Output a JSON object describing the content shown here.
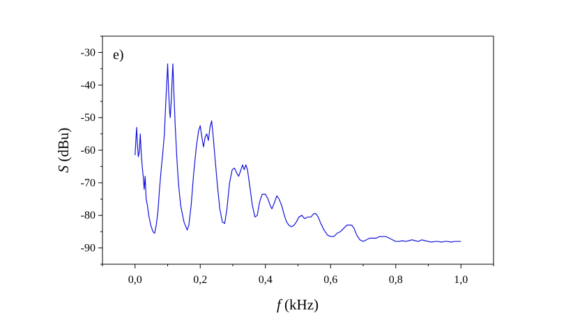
{
  "chart_data": {
    "type": "line",
    "panel_label": "e)",
    "xlabel": {
      "symbol": "f",
      "unit": " (kHz)"
    },
    "ylabel": {
      "symbol": "S",
      "unit": " (dBu)"
    },
    "xlim": [
      -0.1,
      1.1
    ],
    "ylim": [
      -95,
      -25
    ],
    "xticks": [
      {
        "value": 0.0,
        "label": "0,0"
      },
      {
        "value": 0.2,
        "label": "0,2"
      },
      {
        "value": 0.4,
        "label": "0,4"
      },
      {
        "value": 0.6,
        "label": "0,6"
      },
      {
        "value": 0.8,
        "label": "0,8"
      },
      {
        "value": 1.0,
        "label": "1,0"
      }
    ],
    "yticks": [
      {
        "value": -30,
        "label": "-30"
      },
      {
        "value": -40,
        "label": "-40"
      },
      {
        "value": -50,
        "label": "-50"
      },
      {
        "value": -60,
        "label": "-60"
      },
      {
        "value": -70,
        "label": "-70"
      },
      {
        "value": -80,
        "label": "-80"
      },
      {
        "value": -90,
        "label": "-90"
      }
    ],
    "grid": false,
    "series": [
      {
        "color": "#1010dd",
        "points": [
          [
            0.0,
            -61.5
          ],
          [
            0.003,
            -56.0
          ],
          [
            0.005,
            -53.0
          ],
          [
            0.007,
            -58.0
          ],
          [
            0.01,
            -62.0
          ],
          [
            0.013,
            -60.5
          ],
          [
            0.016,
            -55.0
          ],
          [
            0.019,
            -61.0
          ],
          [
            0.022,
            -65.0
          ],
          [
            0.025,
            -68.0
          ],
          [
            0.028,
            -72.0
          ],
          [
            0.031,
            -68.0
          ],
          [
            0.034,
            -75.0
          ],
          [
            0.038,
            -77.0
          ],
          [
            0.042,
            -80.0
          ],
          [
            0.048,
            -83.0
          ],
          [
            0.055,
            -85.0
          ],
          [
            0.06,
            -85.5
          ],
          [
            0.065,
            -83.0
          ],
          [
            0.07,
            -79.0
          ],
          [
            0.075,
            -72.0
          ],
          [
            0.08,
            -66.0
          ],
          [
            0.085,
            -61.0
          ],
          [
            0.09,
            -55.0
          ],
          [
            0.094,
            -46.0
          ],
          [
            0.098,
            -38.0
          ],
          [
            0.1,
            -33.5
          ],
          [
            0.103,
            -42.0
          ],
          [
            0.106,
            -48.0
          ],
          [
            0.108,
            -50.0
          ],
          [
            0.111,
            -45.0
          ],
          [
            0.114,
            -38.0
          ],
          [
            0.116,
            -33.5
          ],
          [
            0.119,
            -42.0
          ],
          [
            0.123,
            -52.0
          ],
          [
            0.128,
            -62.0
          ],
          [
            0.133,
            -70.0
          ],
          [
            0.14,
            -77.0
          ],
          [
            0.15,
            -82.0
          ],
          [
            0.16,
            -84.5
          ],
          [
            0.165,
            -83.0
          ],
          [
            0.172,
            -77.0
          ],
          [
            0.18,
            -67.0
          ],
          [
            0.188,
            -59.0
          ],
          [
            0.195,
            -54.0
          ],
          [
            0.2,
            -52.5
          ],
          [
            0.205,
            -56.0
          ],
          [
            0.21,
            -59.0
          ],
          [
            0.215,
            -56.0
          ],
          [
            0.22,
            -55.0
          ],
          [
            0.225,
            -57.0
          ],
          [
            0.23,
            -53.0
          ],
          [
            0.235,
            -51.0
          ],
          [
            0.24,
            -56.0
          ],
          [
            0.245,
            -62.0
          ],
          [
            0.252,
            -70.0
          ],
          [
            0.26,
            -78.0
          ],
          [
            0.268,
            -82.0
          ],
          [
            0.275,
            -82.5
          ],
          [
            0.282,
            -78.0
          ],
          [
            0.29,
            -70.0
          ],
          [
            0.298,
            -66.0
          ],
          [
            0.305,
            -65.5
          ],
          [
            0.312,
            -67.0
          ],
          [
            0.318,
            -68.0
          ],
          [
            0.325,
            -66.0
          ],
          [
            0.33,
            -64.5
          ],
          [
            0.335,
            -66.0
          ],
          [
            0.34,
            -64.5
          ],
          [
            0.345,
            -66.0
          ],
          [
            0.352,
            -71.0
          ],
          [
            0.36,
            -77.0
          ],
          [
            0.368,
            -80.5
          ],
          [
            0.375,
            -80.0
          ],
          [
            0.382,
            -76.0
          ],
          [
            0.39,
            -73.5
          ],
          [
            0.4,
            -73.5
          ],
          [
            0.408,
            -75.0
          ],
          [
            0.415,
            -77.0
          ],
          [
            0.42,
            -78.0
          ],
          [
            0.428,
            -76.0
          ],
          [
            0.435,
            -74.0
          ],
          [
            0.442,
            -75.0
          ],
          [
            0.45,
            -77.0
          ],
          [
            0.458,
            -80.0
          ],
          [
            0.465,
            -82.0
          ],
          [
            0.472,
            -83.0
          ],
          [
            0.48,
            -83.5
          ],
          [
            0.488,
            -83.0
          ],
          [
            0.495,
            -82.0
          ],
          [
            0.503,
            -80.5
          ],
          [
            0.512,
            -80.0
          ],
          [
            0.52,
            -81.0
          ],
          [
            0.53,
            -80.5
          ],
          [
            0.54,
            -80.5
          ],
          [
            0.548,
            -79.5
          ],
          [
            0.555,
            -79.5
          ],
          [
            0.562,
            -80.5
          ],
          [
            0.57,
            -82.5
          ],
          [
            0.58,
            -84.5
          ],
          [
            0.59,
            -86.0
          ],
          [
            0.6,
            -86.5
          ],
          [
            0.61,
            -86.5
          ],
          [
            0.62,
            -85.5
          ],
          [
            0.63,
            -85.0
          ],
          [
            0.64,
            -84.0
          ],
          [
            0.65,
            -83.0
          ],
          [
            0.658,
            -83.0
          ],
          [
            0.665,
            -83.0
          ],
          [
            0.672,
            -84.0
          ],
          [
            0.68,
            -86.0
          ],
          [
            0.69,
            -87.5
          ],
          [
            0.7,
            -88.0
          ],
          [
            0.71,
            -87.5
          ],
          [
            0.72,
            -87.0
          ],
          [
            0.73,
            -87.0
          ],
          [
            0.74,
            -87.0
          ],
          [
            0.75,
            -86.5
          ],
          [
            0.76,
            -86.5
          ],
          [
            0.77,
            -86.5
          ],
          [
            0.78,
            -87.0
          ],
          [
            0.79,
            -87.5
          ],
          [
            0.8,
            -88.0
          ],
          [
            0.81,
            -88.0
          ],
          [
            0.82,
            -87.8
          ],
          [
            0.83,
            -88.0
          ],
          [
            0.84,
            -87.8
          ],
          [
            0.85,
            -87.5
          ],
          [
            0.86,
            -87.8
          ],
          [
            0.87,
            -88.0
          ],
          [
            0.88,
            -87.5
          ],
          [
            0.89,
            -87.8
          ],
          [
            0.9,
            -88.0
          ],
          [
            0.91,
            -88.2
          ],
          [
            0.92,
            -88.0
          ],
          [
            0.93,
            -88.0
          ],
          [
            0.94,
            -88.2
          ],
          [
            0.95,
            -88.0
          ],
          [
            0.96,
            -88.0
          ],
          [
            0.97,
            -88.2
          ],
          [
            0.98,
            -88.0
          ],
          [
            0.99,
            -88.0
          ],
          [
            1.0,
            -88.0
          ]
        ]
      }
    ]
  }
}
